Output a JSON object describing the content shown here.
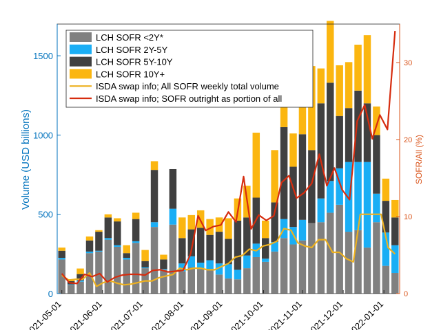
{
  "chart_data": {
    "type": "bar",
    "stacked": true,
    "title": "",
    "ylabel": "Volume (USD billions)",
    "ylabel_right": "SOFR/All (%)",
    "ylim": [
      0,
      1700
    ],
    "ylim_right": [
      0,
      35
    ],
    "yticks": [
      0,
      500,
      1000,
      1500
    ],
    "yticks_right": [
      0,
      10,
      20,
      30
    ],
    "x_tick_labels": [
      "2021-05-01",
      "2021-06-01",
      "2021-07-01",
      "2021-08-01",
      "2021-09-01",
      "2021-10-01",
      "2021-11-01",
      "2021-12-01",
      "2022-01-01"
    ],
    "x_tick_positions": [
      0.5,
      4.9,
      9.3,
      13.7,
      17.9,
      22.3,
      26.5,
      30.9,
      35.3
    ],
    "legend_position": "top-left",
    "colors": {
      "lt2": "#808080",
      "y2_5": "#1AAEF5",
      "y5_10": "#404040",
      "y10p": "#FBB610",
      "isda_total": "#EDB120",
      "sofr_portion": "#D62C0E",
      "axis_left": "#0072BD",
      "axis_right": "#D95319"
    },
    "series": [
      {
        "name": "LCH SOFR <2Y*",
        "values": [
          215,
          55,
          75,
          255,
          265,
          340,
          295,
          215,
          320,
          160,
          420,
          150,
          435,
          140,
          165,
          155,
          150,
          120,
          95,
          90,
          160,
          230,
          200,
          265,
          350,
          310,
          335,
          445,
          450,
          510,
          560,
          390,
          400,
          290,
          450,
          175,
          130
        ]
      },
      {
        "name": "LCH SOFR 2Y-5Y",
        "values": [
          10,
          3,
          8,
          10,
          5,
          10,
          10,
          10,
          10,
          5,
          30,
          5,
          100,
          50,
          70,
          40,
          60,
          70,
          90,
          60,
          80,
          85,
          20,
          60,
          120,
          110,
          130,
          0,
          150,
          200,
          230,
          440,
          430,
          540,
          180,
          210,
          175
        ]
      },
      {
        "name": "LCH SOFR 5Y-10Y",
        "values": [
          45,
          20,
          40,
          70,
          120,
          130,
          150,
          30,
          140,
          40,
          330,
          60,
          250,
          160,
          170,
          220,
          160,
          200,
          160,
          310,
          240,
          290,
          130,
          250,
          580,
          380,
          540,
          460,
          600,
          620,
          330,
          340,
          450,
          370,
          370,
          200,
          175
        ]
      },
      {
        "name": "LCH SOFR 10Y+",
        "values": [
          20,
          12,
          35,
          25,
          10,
          20,
          20,
          50,
          40,
          70,
          55,
          30,
          0,
          130,
          90,
          110,
          100,
          90,
          130,
          140,
          200,
          410,
          110,
          330,
          250,
          210,
          220,
          530,
          220,
          390,
          320,
          290,
          290,
          430,
          180,
          140,
          110
        ]
      }
    ],
    "lines": [
      {
        "name": "ISDA swap info; All SOFR weekly total volume",
        "axis": "left",
        "values": [
          115,
          85,
          90,
          90,
          130,
          45,
          70,
          80,
          65,
          55,
          60,
          70,
          80,
          80,
          100,
          110,
          120,
          160,
          150,
          160,
          160,
          150,
          150,
          170,
          190,
          230,
          240,
          280,
          270,
          300,
          310,
          330,
          410,
          400,
          320,
          300,
          290,
          340,
          340,
          260,
          260,
          220,
          200,
          500,
          500,
          500,
          500,
          290,
          250
        ]
      },
      {
        "name": "ISDA swap info; SOFR outright as portion of all",
        "axis": "right",
        "values": [
          2.6,
          1.4,
          1.3,
          2.5,
          2.2,
          2.6,
          1.5,
          2.1,
          2.4,
          2.5,
          2.5,
          2.4,
          3.0,
          3.1,
          2.8,
          2.9,
          3.0,
          5.1,
          10.1,
          8.2,
          8.7,
          8.9,
          10.6,
          9.3,
          15.2,
          8.4,
          10.2,
          9.5,
          10.1,
          14.4,
          15.3,
          12.4,
          13.1,
          14.3,
          18.1,
          14.0,
          16.3,
          13.5,
          12.2,
          22.4,
          24.5,
          20.1,
          23.2,
          21.3,
          34.1
        ]
      }
    ]
  }
}
